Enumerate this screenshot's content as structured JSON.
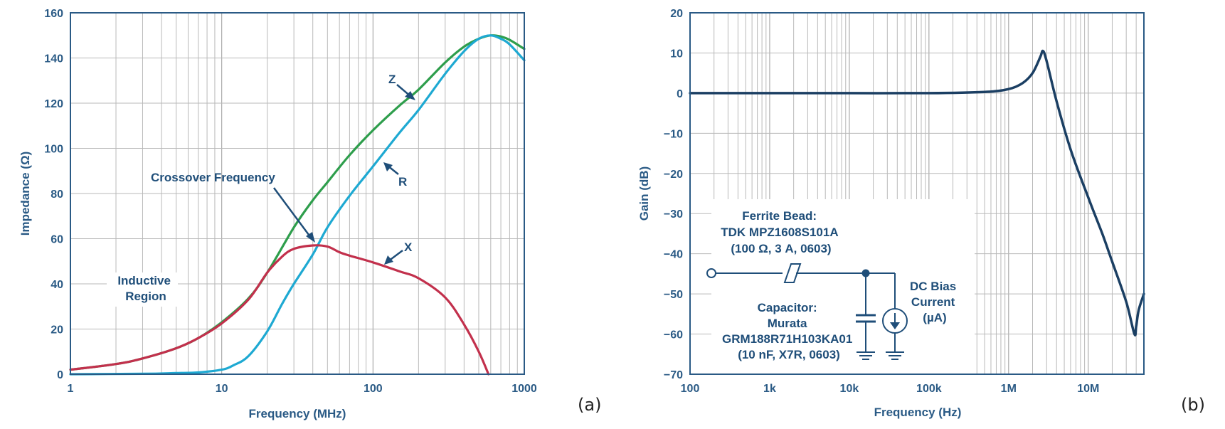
{
  "chart_data": [
    {
      "type": "line",
      "panel_label": "(a)",
      "xlabel": "Frequency (MHz)",
      "ylabel": "Impedance (Ω)",
      "xscale": "log",
      "xlim": [
        1,
        1000
      ],
      "ylim": [
        0,
        160
      ],
      "x_tick_labels": [
        "1",
        "10",
        "100",
        "1000"
      ],
      "y_tick_labels": [
        "0",
        "20",
        "40",
        "60",
        "80",
        "100",
        "120",
        "140",
        "160"
      ],
      "grid": true,
      "series": [
        {
          "name": "Z",
          "color": "#2e9e4c",
          "x": [
            1,
            2,
            3,
            5,
            7,
            10,
            15,
            20,
            30,
            40,
            50,
            70,
            100,
            150,
            200,
            300,
            400,
            500,
            600,
            700,
            800,
            1000
          ],
          "y": [
            2,
            4.5,
            7,
            11.5,
            16,
            23,
            33.5,
            45,
            65,
            77,
            85,
            97,
            108,
            119,
            126,
            138,
            145,
            148.5,
            150,
            149.5,
            148,
            144
          ]
        },
        {
          "name": "R",
          "color": "#1ea9d2",
          "x": [
            1,
            3,
            5,
            7,
            10,
            12,
            15,
            20,
            25,
            30,
            40,
            50,
            70,
            100,
            150,
            200,
            300,
            400,
            500,
            600,
            700,
            800,
            1000
          ],
          "y": [
            0,
            0.2,
            0.5,
            0.8,
            2,
            4,
            8,
            19,
            31,
            40,
            53,
            65,
            79,
            92,
            107,
            117,
            133,
            143,
            148.5,
            150,
            148.5,
            146,
            139
          ]
        },
        {
          "name": "X",
          "color": "#c2304c",
          "x": [
            1,
            2,
            3,
            5,
            7,
            10,
            15,
            20,
            25,
            30,
            40,
            50,
            60,
            70,
            100,
            150,
            200,
            300,
            400,
            500,
            580
          ],
          "y": [
            2,
            4.5,
            7,
            11.5,
            16,
            22.5,
            33,
            45,
            52,
            55.5,
            57,
            56.5,
            54,
            52.5,
            49.5,
            45.5,
            42.5,
            34,
            22,
            10,
            0
          ]
        }
      ],
      "annotations": [
        {
          "text": "Z",
          "x": 120,
          "y": 123
        },
        {
          "text": "R",
          "x": 130,
          "y": 96
        },
        {
          "text": "X",
          "x": 140,
          "y": 52
        },
        {
          "text": "Crossover Frequency",
          "x": 45,
          "y": 57
        },
        {
          "text": "Inductive Region",
          "x": 6,
          "y": 41
        }
      ]
    },
    {
      "type": "line",
      "panel_label": "(b)",
      "xlabel": "Frequency (Hz)",
      "ylabel": "Gain (dB)",
      "xscale": "log",
      "xlim": [
        100,
        50000000
      ],
      "ylim": [
        -70,
        20
      ],
      "x_tick_labels": [
        "100",
        "1k",
        "10k",
        "100k",
        "1M",
        "10M"
      ],
      "y_tick_labels": [
        "20",
        "10",
        "0",
        "−10",
        "−20",
        "−30",
        "−40",
        "−50",
        "−60",
        "−70"
      ],
      "grid": true,
      "series": [
        {
          "color": "#1b3f63",
          "x": [
            100,
            1000,
            10000,
            100000,
            500000,
            1000000,
            1500000,
            2000000,
            2500000,
            2700000,
            3000000,
            4000000,
            6000000,
            10000000,
            15000000,
            20000000,
            30000000,
            38000000,
            40000000,
            43000000,
            50000000
          ],
          "y": [
            0,
            0,
            0,
            0,
            0.3,
            1,
            2.5,
            5,
            9,
            10.5,
            8,
            -2,
            -14,
            -26,
            -35,
            -42,
            -52,
            -60,
            -58,
            -54,
            -50
          ]
        }
      ],
      "inset": {
        "bead_title": "Ferrite Bead:",
        "bead_part": "TDK MPZ1608S101A",
        "bead_spec": "(100 Ω, 3 A, 0603)",
        "cap_title": "Capacitor:",
        "cap_maker": "Murata",
        "cap_part": "GRM188R71H103KA01",
        "cap_spec": "(10 nF, X7R, 0603)",
        "source_l1": "DC Bias",
        "source_l2": "Current",
        "source_l3": "(µA)"
      }
    }
  ]
}
